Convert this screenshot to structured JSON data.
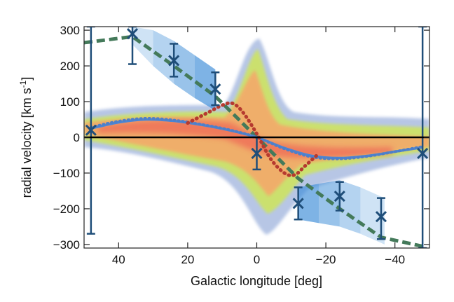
{
  "chart_data": {
    "type": "scatter",
    "title": "",
    "xlabel": "Galactic longitude [deg]",
    "ylabel": "radial velocity [km s",
    "ylabel_sup": "-1",
    "ylabel_close": "]",
    "xlim": [
      50,
      -50
    ],
    "ylim": [
      -310,
      310
    ],
    "x_ticks": [
      40,
      20,
      0,
      -20,
      -40
    ],
    "x_tick_labels": [
      "40",
      "20",
      "0",
      "−20",
      "−40"
    ],
    "y_ticks": [
      300,
      200,
      100,
      0,
      -100,
      -200,
      -300
    ],
    "y_tick_labels": [
      "300",
      "200",
      "100",
      "0",
      "−100",
      "−200",
      "−300"
    ],
    "grid": false,
    "colors": {
      "density_outer": "#9fb3dd",
      "density_mid": "#cfe55a",
      "density_inner": "#f4a96a",
      "density_core": "#ef4f4f",
      "blue_band": "#3f8ed8",
      "observations": "#1f4e79",
      "dashed_green": "#447a5a",
      "solid_blue": "#4a86d6",
      "dotted_red": "#b63a2f",
      "dotted_blue": "#4f7fc8",
      "zero_line": "#000000"
    },
    "series": [
      {
        "style": "dashed-green",
        "x": [
          50,
          36,
          24,
          12,
          0,
          -12,
          -24,
          -36,
          -48
        ],
        "y": [
          265,
          282,
          200,
          115,
          0,
          -115,
          -200,
          -280,
          -305
        ]
      },
      {
        "style": "solid-blue",
        "x": [
          48,
          40,
          32,
          24,
          16,
          8,
          0,
          -8,
          -16,
          -24,
          -32,
          -40,
          -48
        ],
        "y": [
          25,
          42,
          50,
          46,
          35,
          20,
          0,
          -30,
          -52,
          -58,
          -52,
          -40,
          -28
        ]
      },
      {
        "style": "dotted-blue",
        "x": [
          48,
          40,
          32,
          24,
          16,
          8,
          0,
          -8,
          -16,
          -24,
          -32,
          -40,
          -48
        ],
        "y": [
          28,
          45,
          53,
          48,
          36,
          21,
          0,
          -32,
          -55,
          -60,
          -53,
          -40,
          -26
        ]
      },
      {
        "style": "dotted-red",
        "x": [
          20,
          14,
          10,
          7,
          4,
          0,
          -4,
          -8,
          -11,
          -14,
          -18
        ],
        "y": [
          40,
          70,
          90,
          95,
          70,
          10,
          -60,
          -100,
          -105,
          -80,
          -45
        ]
      }
    ],
    "observations": [
      {
        "x": 48,
        "y": 20,
        "err_low": -270,
        "err_high": 310
      },
      {
        "x": 36,
        "y": 290,
        "err_low": 205,
        "err_high": 310
      },
      {
        "x": 24,
        "y": 215,
        "err_low": 170,
        "err_high": 262
      },
      {
        "x": 12,
        "y": 135,
        "err_low": 90,
        "err_high": 182
      },
      {
        "x": 0,
        "y": -45,
        "err_low": -90,
        "err_high": 0
      },
      {
        "x": -12,
        "y": -185,
        "err_low": -230,
        "err_high": -140
      },
      {
        "x": -24,
        "y": -165,
        "err_low": -205,
        "err_high": -125
      },
      {
        "x": -36,
        "y": -222,
        "err_low": -285,
        "err_high": -170
      },
      {
        "x": -48,
        "y": -45,
        "err_low": -310,
        "err_high": 310
      }
    ],
    "bands": [
      {
        "x": [
          36,
          30,
          24,
          18,
          12
        ],
        "low": [
          260,
          200,
          150,
          110,
          75
        ],
        "high": [
          310,
          300,
          270,
          230,
          190
        ]
      },
      {
        "x": [
          -12,
          -18,
          -24,
          -30,
          -37
        ],
        "low": [
          -230,
          -240,
          -250,
          -270,
          -300
        ],
        "high": [
          -140,
          -130,
          -120,
          -140,
          -170
        ]
      }
    ]
  }
}
